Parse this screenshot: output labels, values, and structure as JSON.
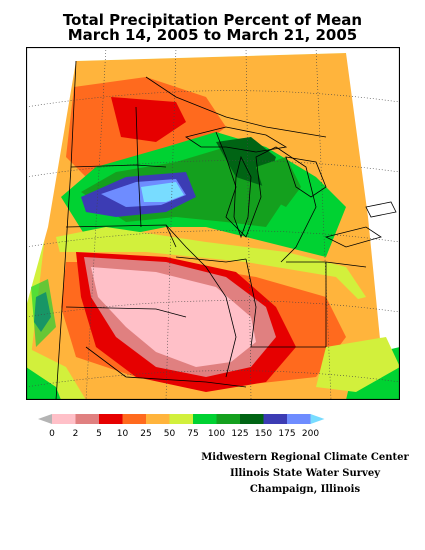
{
  "title": {
    "line1": "Total Precipitation Percent of Mean",
    "line2": "March 14, 2005 to March 21, 2005"
  },
  "legend": {
    "ticks": [
      "0",
      "2",
      "5",
      "10",
      "25",
      "50",
      "75",
      "100",
      "125",
      "150",
      "175",
      "200"
    ],
    "colors": [
      "#b4b4b4",
      "#ffc0c8",
      "#e08080",
      "#e60000",
      "#ff6a1e",
      "#ffb43c",
      "#d2f03c",
      "#00d232",
      "#14a01e",
      "#006414",
      "#3c3cb4",
      "#6e8cff",
      "#78dcff"
    ]
  },
  "credits": {
    "line1": "Midwestern Regional Climate Center",
    "line2": "Illinois State Water Survey",
    "line3": "Champaign, Illinois"
  }
}
